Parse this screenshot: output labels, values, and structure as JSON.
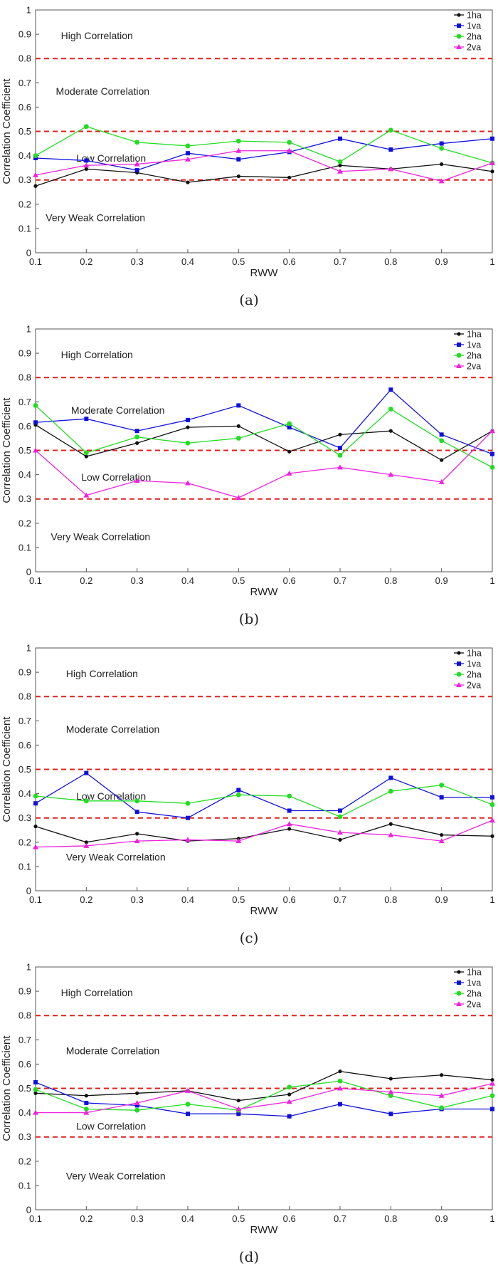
{
  "chart_data": [
    {
      "type": "line",
      "caption": "(a)",
      "xlabel": "RWW",
      "ylabel": "Correlation Coefficient",
      "xlim": [
        0.1,
        1
      ],
      "ylim": [
        0,
        1
      ],
      "x": [
        0.1,
        0.2,
        0.3,
        0.4,
        0.5,
        0.6,
        0.7,
        0.8,
        0.9,
        1
      ],
      "xticks": [
        "0.1",
        "0.2",
        "0.3",
        "0.4",
        "0.5",
        "0.6",
        "0.7",
        "0.8",
        "0.9",
        "1"
      ],
      "yticks": [
        "0",
        "0.1",
        "0.2",
        "0.3",
        "0.4",
        "0.5",
        "0.6",
        "0.7",
        "0.8",
        "0.9",
        "1"
      ],
      "thresholds": [
        0.3,
        0.5,
        0.8
      ],
      "threshold_color": "#e02020",
      "legend_position": "top-right",
      "regions": [
        {
          "label": "High Correlation",
          "x": 0.15,
          "y": 0.895
        },
        {
          "label": "Moderate Correlation",
          "x": 0.14,
          "y": 0.665
        },
        {
          "label": "Low Correlation",
          "x": 0.18,
          "y": 0.39
        },
        {
          "label": "Very Weak Correlation",
          "x": 0.12,
          "y": 0.145
        }
      ],
      "series": [
        {
          "name": "1ha",
          "color": "#111111",
          "marker": "circle",
          "values": [
            0.275,
            0.345,
            0.33,
            0.29,
            0.315,
            0.31,
            0.36,
            0.345,
            0.365,
            0.335
          ]
        },
        {
          "name": "1va",
          "color": "#1010dd",
          "marker": "square",
          "values": [
            0.39,
            0.38,
            0.34,
            0.41,
            0.385,
            0.415,
            0.47,
            0.425,
            0.45,
            0.47
          ]
        },
        {
          "name": "2ha",
          "color": "#22dd22",
          "marker": "circle",
          "values": [
            0.4,
            0.52,
            0.455,
            0.44,
            0.46,
            0.455,
            0.375,
            0.505,
            0.43,
            0.37
          ]
        },
        {
          "name": "2va",
          "color": "#ee22dd",
          "marker": "triangle",
          "values": [
            0.32,
            0.36,
            0.365,
            0.385,
            0.42,
            0.42,
            0.335,
            0.345,
            0.295,
            0.37
          ]
        }
      ]
    },
    {
      "type": "line",
      "caption": "(b)",
      "xlabel": "RWW",
      "ylabel": "Correlation Coefficient",
      "xlim": [
        0.1,
        1
      ],
      "ylim": [
        0,
        1
      ],
      "x": [
        0.1,
        0.2,
        0.3,
        0.4,
        0.5,
        0.6,
        0.7,
        0.8,
        0.9,
        1
      ],
      "xticks": [
        "0.1",
        "0.2",
        "0.3",
        "0.4",
        "0.5",
        "0.6",
        "0.7",
        "0.8",
        "0.9",
        "1"
      ],
      "yticks": [
        "0",
        "0.1",
        "0.2",
        "0.3",
        "0.4",
        "0.5",
        "0.6",
        "0.7",
        "0.8",
        "0.9",
        "1"
      ],
      "thresholds": [
        0.3,
        0.5,
        0.8
      ],
      "threshold_color": "#e02020",
      "legend_position": "top-right",
      "regions": [
        {
          "label": "High Correlation",
          "x": 0.15,
          "y": 0.895
        },
        {
          "label": "Moderate Correlation",
          "x": 0.17,
          "y": 0.665
        },
        {
          "label": "Low Correlation",
          "x": 0.19,
          "y": 0.39
        },
        {
          "label": "Very Weak Correlation",
          "x": 0.13,
          "y": 0.145
        }
      ],
      "series": [
        {
          "name": "1ha",
          "color": "#111111",
          "marker": "circle",
          "values": [
            0.605,
            0.475,
            0.53,
            0.595,
            0.6,
            0.495,
            0.565,
            0.58,
            0.46,
            0.58
          ]
        },
        {
          "name": "1va",
          "color": "#1010dd",
          "marker": "square",
          "values": [
            0.615,
            0.63,
            0.58,
            0.625,
            0.685,
            0.595,
            0.51,
            0.75,
            0.565,
            0.485
          ]
        },
        {
          "name": "2ha",
          "color": "#22dd22",
          "marker": "circle",
          "values": [
            0.685,
            0.49,
            0.555,
            0.53,
            0.55,
            0.61,
            0.48,
            0.67,
            0.54,
            0.43
          ]
        },
        {
          "name": "2va",
          "color": "#ee22dd",
          "marker": "triangle",
          "values": [
            0.5,
            0.315,
            0.375,
            0.365,
            0.305,
            0.405,
            0.43,
            0.4,
            0.37,
            0.58
          ]
        }
      ]
    },
    {
      "type": "line",
      "caption": "(c)",
      "xlabel": "RWW",
      "ylabel": "Correlation Coefficient",
      "xlim": [
        0.1,
        1
      ],
      "ylim": [
        0,
        1
      ],
      "x": [
        0.1,
        0.2,
        0.3,
        0.4,
        0.5,
        0.6,
        0.7,
        0.8,
        0.9,
        1
      ],
      "xticks": [
        "0.1",
        "0.2",
        "0.3",
        "0.4",
        "0.5",
        "0.6",
        "0.7",
        "0.8",
        "0.9",
        "1"
      ],
      "yticks": [
        "0",
        "0.1",
        "0.2",
        "0.3",
        "0.4",
        "0.5",
        "0.6",
        "0.7",
        "0.8",
        "0.9",
        "1"
      ],
      "thresholds": [
        0.3,
        0.5,
        0.8
      ],
      "threshold_color": "#e02020",
      "legend_position": "top-right",
      "regions": [
        {
          "label": "High Correlation",
          "x": 0.16,
          "y": 0.895
        },
        {
          "label": "Moderate Correlation",
          "x": 0.16,
          "y": 0.665
        },
        {
          "label": "Low Correlation",
          "x": 0.18,
          "y": 0.39
        },
        {
          "label": "Very Weak Correlation",
          "x": 0.16,
          "y": 0.14
        }
      ],
      "series": [
        {
          "name": "1ha",
          "color": "#111111",
          "marker": "circle",
          "values": [
            0.265,
            0.2,
            0.235,
            0.205,
            0.215,
            0.255,
            0.21,
            0.275,
            0.23,
            0.225
          ]
        },
        {
          "name": "1va",
          "color": "#1010dd",
          "marker": "square",
          "values": [
            0.36,
            0.485,
            0.325,
            0.3,
            0.415,
            0.33,
            0.33,
            0.465,
            0.385,
            0.385
          ]
        },
        {
          "name": "2ha",
          "color": "#22dd22",
          "marker": "circle",
          "values": [
            0.39,
            0.37,
            0.37,
            0.36,
            0.395,
            0.39,
            0.305,
            0.41,
            0.435,
            0.355
          ]
        },
        {
          "name": "2va",
          "color": "#ee22dd",
          "marker": "triangle",
          "values": [
            0.18,
            0.185,
            0.205,
            0.21,
            0.205,
            0.275,
            0.24,
            0.23,
            0.205,
            0.29
          ]
        }
      ]
    },
    {
      "type": "line",
      "caption": "(d)",
      "xlabel": "RWW",
      "ylabel": "Correlation Coefficient",
      "xlim": [
        0.1,
        1
      ],
      "ylim": [
        0,
        1
      ],
      "x": [
        0.1,
        0.2,
        0.3,
        0.4,
        0.5,
        0.6,
        0.7,
        0.8,
        0.9,
        1
      ],
      "xticks": [
        "0.1",
        "0.2",
        "0.3",
        "0.4",
        "0.5",
        "0.6",
        "0.7",
        "0.8",
        "0.9",
        "1"
      ],
      "yticks": [
        "0",
        "0.1",
        "0.2",
        "0.3",
        "0.4",
        "0.5",
        "0.6",
        "0.7",
        "0.8",
        "0.9",
        "1"
      ],
      "thresholds": [
        0.3,
        0.5,
        0.8
      ],
      "threshold_color": "#e02020",
      "legend_position": "top-right",
      "regions": [
        {
          "label": "High Correlation",
          "x": 0.15,
          "y": 0.895
        },
        {
          "label": "Moderate Correlation",
          "x": 0.16,
          "y": 0.655
        },
        {
          "label": "Low Correlation",
          "x": 0.18,
          "y": 0.345
        },
        {
          "label": "Very Weak Correlation",
          "x": 0.16,
          "y": 0.14
        }
      ],
      "series": [
        {
          "name": "1ha",
          "color": "#111111",
          "marker": "circle",
          "values": [
            0.48,
            0.47,
            0.48,
            0.49,
            0.45,
            0.475,
            0.57,
            0.54,
            0.555,
            0.535
          ]
        },
        {
          "name": "1va",
          "color": "#1010dd",
          "marker": "square",
          "values": [
            0.525,
            0.44,
            0.43,
            0.395,
            0.395,
            0.385,
            0.435,
            0.395,
            0.415,
            0.415
          ]
        },
        {
          "name": "2ha",
          "color": "#22dd22",
          "marker": "circle",
          "values": [
            0.495,
            0.415,
            0.41,
            0.435,
            0.41,
            0.505,
            0.53,
            0.47,
            0.42,
            0.47
          ]
        },
        {
          "name": "2va",
          "color": "#ee22dd",
          "marker": "triangle",
          "values": [
            0.4,
            0.4,
            0.44,
            0.49,
            0.415,
            0.445,
            0.5,
            0.485,
            0.47,
            0.52
          ]
        }
      ]
    }
  ]
}
